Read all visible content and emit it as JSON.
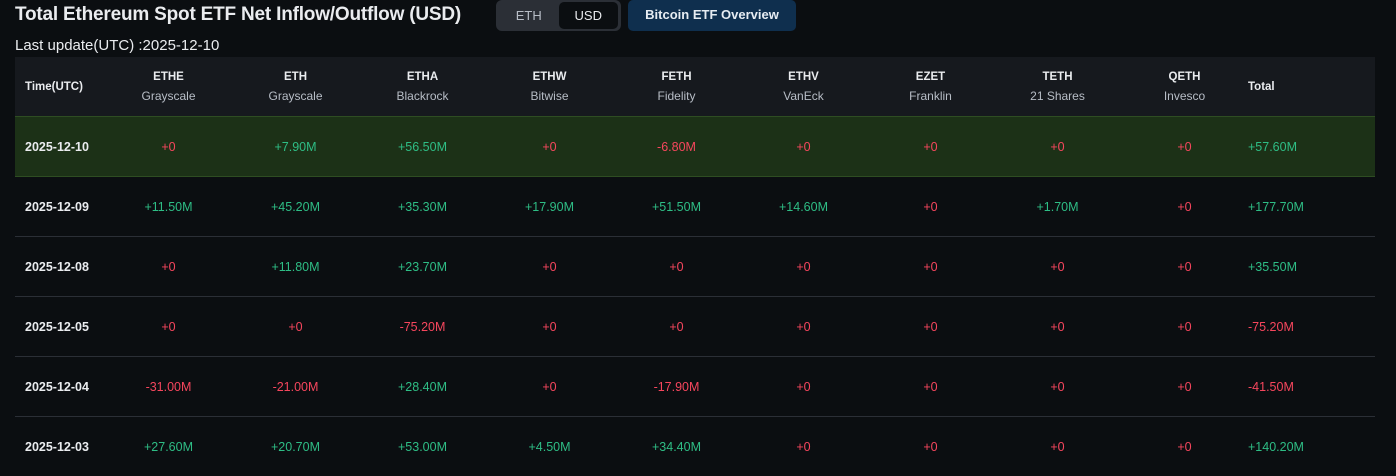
{
  "header": {
    "title": "Total Ethereum Spot ETF Net Inflow/Outflow (USD)",
    "toggle": [
      "ETH",
      "USD"
    ],
    "button": "Bitcoin ETF Overview",
    "last_update": "Last update(UTC) :2025-12-10"
  },
  "table": {
    "columns": [
      {
        "ticker": "Time(UTC)"
      },
      {
        "ticker": "ETHE",
        "issuer": "Grayscale"
      },
      {
        "ticker": "ETH",
        "issuer": "Grayscale"
      },
      {
        "ticker": "ETHA",
        "issuer": "Blackrock"
      },
      {
        "ticker": "ETHW",
        "issuer": "Bitwise"
      },
      {
        "ticker": "FETH",
        "issuer": "Fidelity"
      },
      {
        "ticker": "ETHV",
        "issuer": "VanEck"
      },
      {
        "ticker": "EZET",
        "issuer": "Franklin"
      },
      {
        "ticker": "TETH",
        "issuer": "21 Shares"
      },
      {
        "ticker": "QETH",
        "issuer": "Invesco"
      },
      {
        "ticker": "Total"
      }
    ],
    "rows": [
      [
        "2025-12-10",
        "+0",
        "+7.90M",
        "+56.50M",
        "+0",
        "-6.80M",
        "+0",
        "+0",
        "+0",
        "+0",
        "+57.60M"
      ],
      [
        "2025-12-09",
        "+11.50M",
        "+45.20M",
        "+35.30M",
        "+17.90M",
        "+51.50M",
        "+14.60M",
        "+0",
        "+1.70M",
        "+0",
        "+177.70M"
      ],
      [
        "2025-12-08",
        "+0",
        "+11.80M",
        "+23.70M",
        "+0",
        "+0",
        "+0",
        "+0",
        "+0",
        "+0",
        "+35.50M"
      ],
      [
        "2025-12-05",
        "+0",
        "+0",
        "-75.20M",
        "+0",
        "+0",
        "+0",
        "+0",
        "+0",
        "+0",
        "-75.20M"
      ],
      [
        "2025-12-04",
        "-31.00M",
        "-21.00M",
        "+28.40M",
        "+0",
        "-17.90M",
        "+0",
        "+0",
        "+0",
        "+0",
        "-41.50M"
      ],
      [
        "2025-12-03",
        "+27.60M",
        "+20.70M",
        "+53.00M",
        "+4.50M",
        "+34.40M",
        "+0",
        "+0",
        "+0",
        "+0",
        "+140.20M"
      ]
    ]
  }
}
